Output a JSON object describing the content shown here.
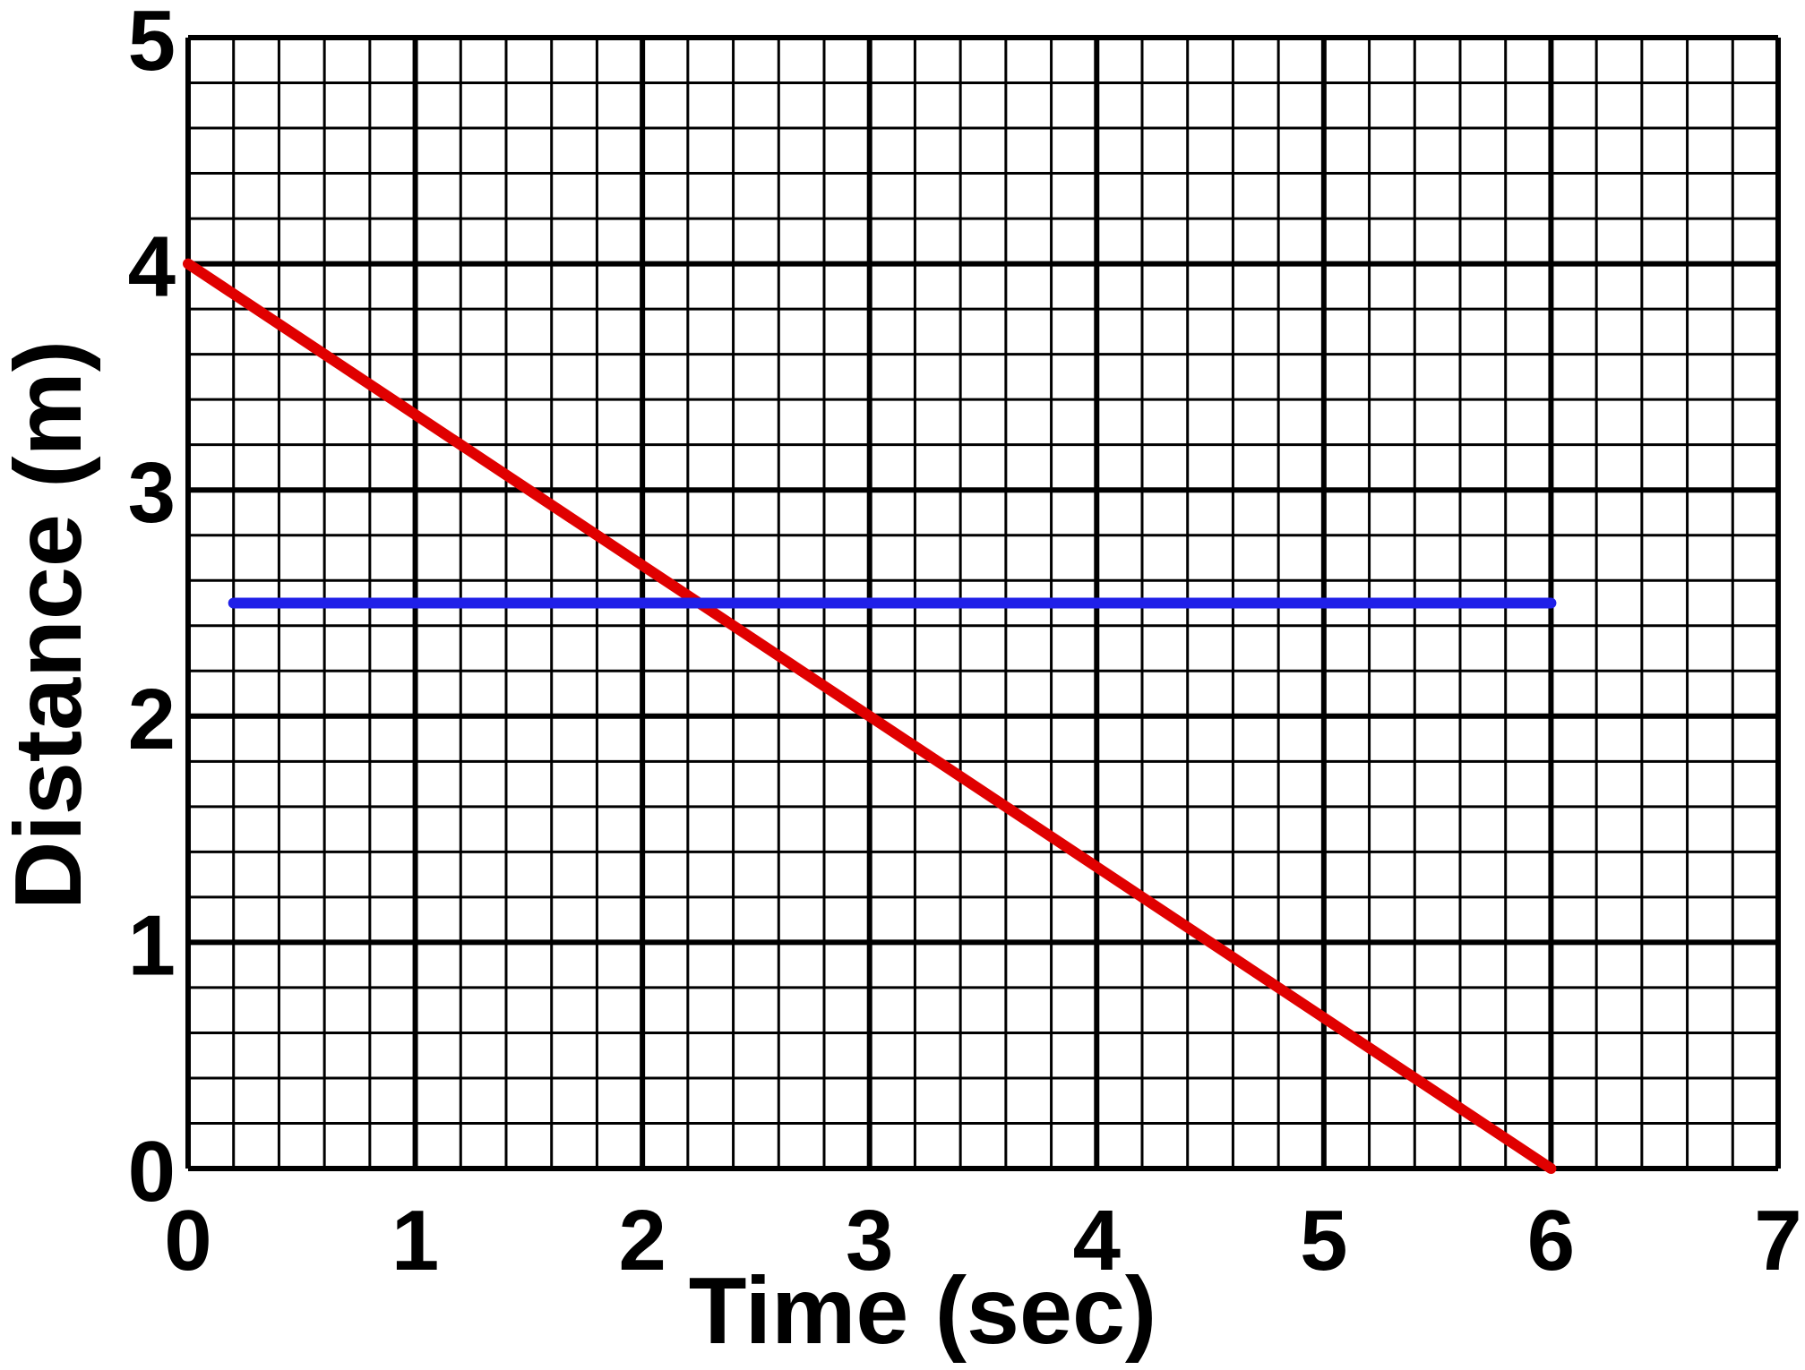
{
  "chart_data": {
    "type": "line",
    "title": "",
    "xlabel": "Time (sec)",
    "ylabel": "Distance (m)",
    "xlim": [
      0,
      7
    ],
    "ylim": [
      0,
      5
    ],
    "x_ticks": [
      "0",
      "1",
      "2",
      "3",
      "4",
      "5",
      "6",
      "7"
    ],
    "y_ticks": [
      "0",
      "1",
      "2",
      "3",
      "4",
      "5"
    ],
    "grid": true,
    "minor_divisions": 5,
    "legend": "none",
    "series": [
      {
        "color": "#e00000",
        "x": [
          0,
          6
        ],
        "y": [
          4,
          0
        ]
      },
      {
        "color": "#2020e8",
        "x": [
          0.2,
          6
        ],
        "y": [
          2.5,
          2.5
        ]
      }
    ]
  }
}
